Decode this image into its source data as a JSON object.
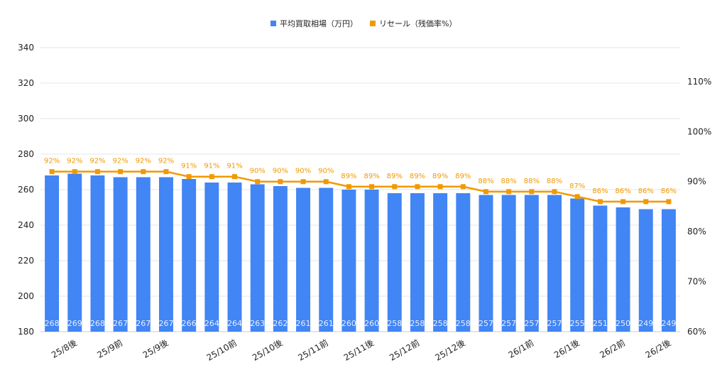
{
  "chart_data": {
    "type": "bar+line",
    "legend_position": "top",
    "grid": true,
    "categories": [
      "",
      "25/8後",
      "",
      "25/9前",
      "",
      "25/9後",
      "",
      "",
      "25/10前",
      "",
      "25/10後",
      "",
      "25/11前",
      "",
      "25/11後",
      "",
      "25/12前",
      "",
      "25/12後",
      "",
      "",
      "26/1前",
      "",
      "26/1後",
      "",
      "26/2前",
      "",
      "26/2後"
    ],
    "y_left": {
      "ylim": [
        180,
        340
      ],
      "ticks": [
        180,
        200,
        220,
        240,
        260,
        280,
        300,
        320,
        340
      ]
    },
    "y_right": {
      "ylim": [
        60,
        116.8
      ],
      "ticks": [
        "60%",
        "70%",
        "80%",
        "90%",
        "100%",
        "110%"
      ],
      "tick_values": [
        60,
        70,
        80,
        90,
        100,
        110
      ]
    },
    "series": [
      {
        "name": "平均買取相場（万円）",
        "type": "bar",
        "axis": "left",
        "color": "#4285f4",
        "values": [
          268,
          269,
          268,
          267,
          267,
          267,
          266,
          264,
          264,
          263,
          262,
          261,
          261,
          260,
          260,
          258,
          258,
          258,
          258,
          257,
          257,
          257,
          257,
          255,
          251,
          250,
          249,
          249
        ]
      },
      {
        "name": "リセール（残価率%）",
        "type": "line",
        "axis": "right",
        "color": "#f29900",
        "values": [
          92,
          92,
          92,
          92,
          92,
          92,
          91,
          91,
          91,
          90,
          90,
          90,
          90,
          89,
          89,
          89,
          89,
          89,
          89,
          88,
          88,
          88,
          88,
          87,
          86,
          86,
          86,
          86
        ]
      }
    ]
  }
}
